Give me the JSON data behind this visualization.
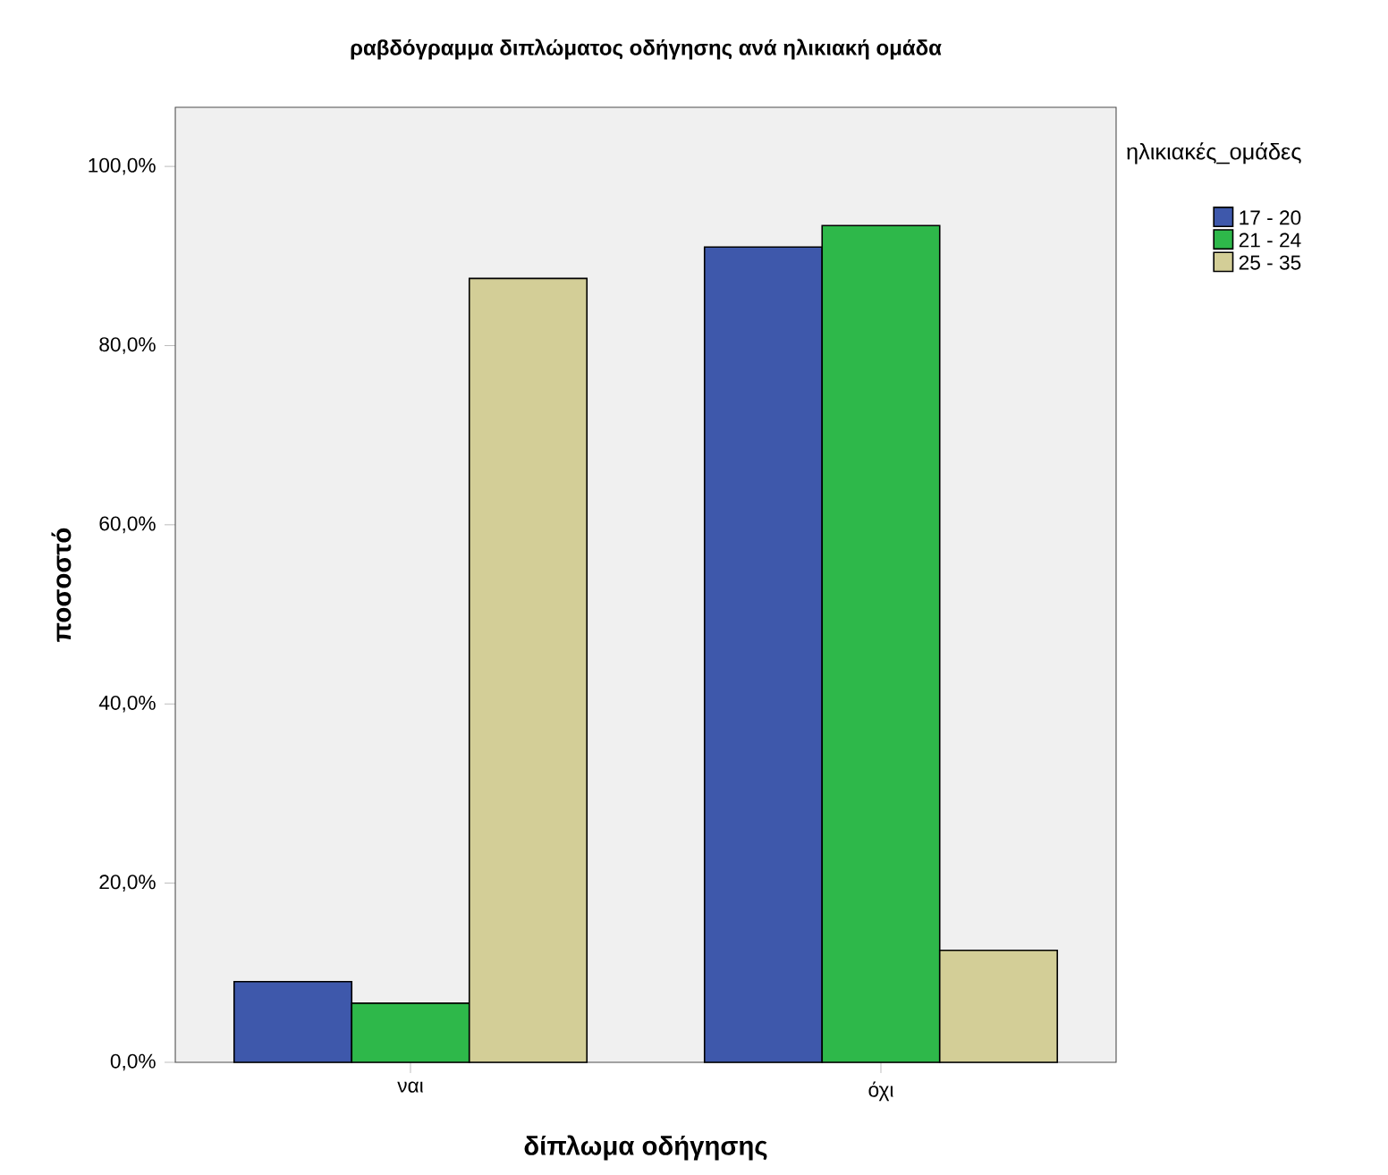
{
  "chart_data": {
    "type": "bar",
    "title": "ραβδόγραμμα διπλώματος οδήγησης ανά ηλικιακή ομάδα",
    "xlabel": "δίπλωμα οδήγησης",
    "ylabel": "ποσοστό",
    "legend_title": "ηλικιακές_ομάδες",
    "legend": "right",
    "categories": [
      "ναι",
      "όχι"
    ],
    "series": [
      {
        "name": "17 - 20",
        "color": "#3e58ab",
        "values": [
          9.0,
          91.0
        ]
      },
      {
        "name": "21 - 24",
        "color": "#2eb84a",
        "values": [
          6.6,
          93.4
        ]
      },
      {
        "name": "25 - 35",
        "color": "#d3ce97",
        "values": [
          87.5,
          12.5
        ]
      }
    ],
    "ylim": [
      0,
      106.6
    ],
    "yticks": [
      {
        "value": 0,
        "label": "0,0%"
      },
      {
        "value": 20,
        "label": "20,0%"
      },
      {
        "value": 40,
        "label": "40,0%"
      },
      {
        "value": 60,
        "label": "60,0%"
      },
      {
        "value": 80,
        "label": "80,0%"
      },
      {
        "value": 100,
        "label": "100,0%"
      }
    ]
  }
}
